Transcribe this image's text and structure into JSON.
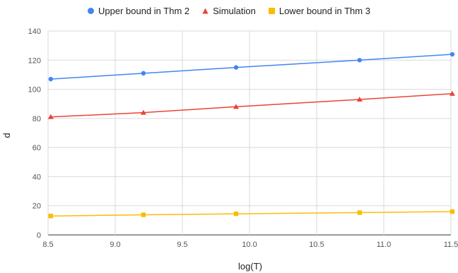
{
  "chart_data": {
    "type": "line",
    "xlabel": "log(T)",
    "ylabel": "d",
    "xlim": [
      8.5,
      11.5
    ],
    "ylim": [
      0,
      140
    ],
    "x_ticks": [
      "8.5",
      "9.0",
      "9.5",
      "10.0",
      "10.5",
      "11.0",
      "11.5"
    ],
    "y_ticks": [
      "0",
      "20",
      "40",
      "60",
      "80",
      "100",
      "120",
      "140"
    ],
    "grid": true,
    "legend_position": "top",
    "series": [
      {
        "name": "Upper bound in Thm 2",
        "color": "#4285f4",
        "marker": "circle",
        "x": [
          8.52,
          9.21,
          9.9,
          10.82,
          11.51
        ],
        "values": [
          107,
          111,
          115,
          120,
          124
        ]
      },
      {
        "name": "Simulation",
        "color": "#ea4335",
        "marker": "triangle",
        "x": [
          8.52,
          9.21,
          9.9,
          10.82,
          11.51
        ],
        "values": [
          81,
          84,
          88,
          93,
          97
        ]
      },
      {
        "name": "Lower bound in Thm 3",
        "color": "#fbbc04",
        "marker": "square",
        "x": [
          8.52,
          9.21,
          9.9,
          10.82,
          11.51
        ],
        "values": [
          13,
          13.8,
          14.5,
          15.3,
          16
        ]
      }
    ]
  }
}
